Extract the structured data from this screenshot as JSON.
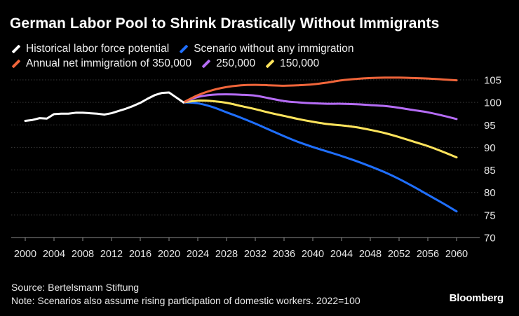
{
  "header": {
    "title": "German Labor Pool to Shrink Drastically Without Immigrants"
  },
  "footer": {
    "source": "Source: Bertelsmann Stiftung",
    "note": "Note: Scenarios also assume rising participation of domestic workers. 2022=100",
    "brand": "Bloomberg"
  },
  "colors": {
    "background": "#000000",
    "gridline": "#3a3a3a",
    "axis": "#8a8a8a"
  },
  "chart_data": {
    "type": "line",
    "title": "German Labor Pool to Shrink Drastically Without Immigrants",
    "xlabel": "",
    "ylabel": "",
    "xlim": [
      2000,
      2060
    ],
    "ylim": [
      70,
      105
    ],
    "yticks": [
      70,
      75,
      80,
      85,
      90,
      95,
      100,
      105
    ],
    "xticks": [
      2000,
      2004,
      2008,
      2012,
      2016,
      2020,
      2024,
      2028,
      2032,
      2036,
      2040,
      2044,
      2048,
      2052,
      2056,
      2060
    ],
    "grid": true,
    "legend_position": "top-left",
    "series": [
      {
        "name": "Historical labor force potential",
        "color": "#ffffff",
        "x": [
          2000,
          2001,
          2002,
          2003,
          2004,
          2005,
          2006,
          2007,
          2008,
          2009,
          2010,
          2011,
          2012,
          2013,
          2014,
          2015,
          2016,
          2017,
          2018,
          2019,
          2020,
          2021,
          2022
        ],
        "y": [
          95.9,
          96.1,
          96.5,
          96.4,
          97.4,
          97.5,
          97.5,
          97.7,
          97.7,
          97.6,
          97.5,
          97.3,
          97.6,
          98.1,
          98.6,
          99.2,
          99.9,
          100.8,
          101.6,
          102.1,
          102.2,
          101.1,
          100.0
        ]
      },
      {
        "name": "Scenario without any immigration",
        "color": "#1f6fff",
        "x": [
          2022,
          2024,
          2026,
          2028,
          2030,
          2032,
          2034,
          2036,
          2038,
          2040,
          2042,
          2044,
          2046,
          2048,
          2050,
          2052,
          2054,
          2056,
          2058,
          2060
        ],
        "y": [
          100.0,
          99.8,
          99.0,
          97.8,
          96.6,
          95.3,
          93.9,
          92.5,
          91.2,
          90.1,
          89.1,
          88.1,
          87.0,
          85.8,
          84.5,
          83.0,
          81.3,
          79.5,
          77.7,
          75.8
        ]
      },
      {
        "name": "Annual net immigration of 350,000",
        "color": "#f0653a",
        "x": [
          2022,
          2024,
          2026,
          2028,
          2030,
          2032,
          2034,
          2036,
          2038,
          2040,
          2042,
          2044,
          2046,
          2048,
          2050,
          2052,
          2054,
          2056,
          2058,
          2060
        ],
        "y": [
          100.0,
          101.6,
          102.7,
          103.4,
          103.8,
          103.9,
          103.8,
          103.7,
          103.8,
          104.0,
          104.4,
          104.9,
          105.2,
          105.4,
          105.5,
          105.5,
          105.4,
          105.3,
          105.1,
          104.9
        ]
      },
      {
        "name": "250,000",
        "color": "#b56cf5",
        "x": [
          2022,
          2024,
          2026,
          2028,
          2030,
          2032,
          2034,
          2036,
          2038,
          2040,
          2042,
          2044,
          2046,
          2048,
          2050,
          2052,
          2054,
          2056,
          2058,
          2060
        ],
        "y": [
          100.0,
          101.2,
          101.7,
          101.8,
          101.7,
          101.5,
          100.9,
          100.3,
          100.0,
          99.8,
          99.7,
          99.7,
          99.6,
          99.4,
          99.2,
          98.8,
          98.3,
          97.8,
          97.1,
          96.3
        ]
      },
      {
        "name": "150,000",
        "color": "#ffe45c",
        "x": [
          2022,
          2024,
          2026,
          2028,
          2030,
          2032,
          2034,
          2036,
          2038,
          2040,
          2042,
          2044,
          2046,
          2048,
          2050,
          2052,
          2054,
          2056,
          2058,
          2060
        ],
        "y": [
          100.0,
          100.4,
          100.3,
          99.9,
          99.2,
          98.5,
          97.7,
          97.0,
          96.3,
          95.7,
          95.2,
          94.9,
          94.5,
          93.9,
          93.2,
          92.3,
          91.3,
          90.3,
          89.1,
          87.8
        ]
      }
    ]
  }
}
